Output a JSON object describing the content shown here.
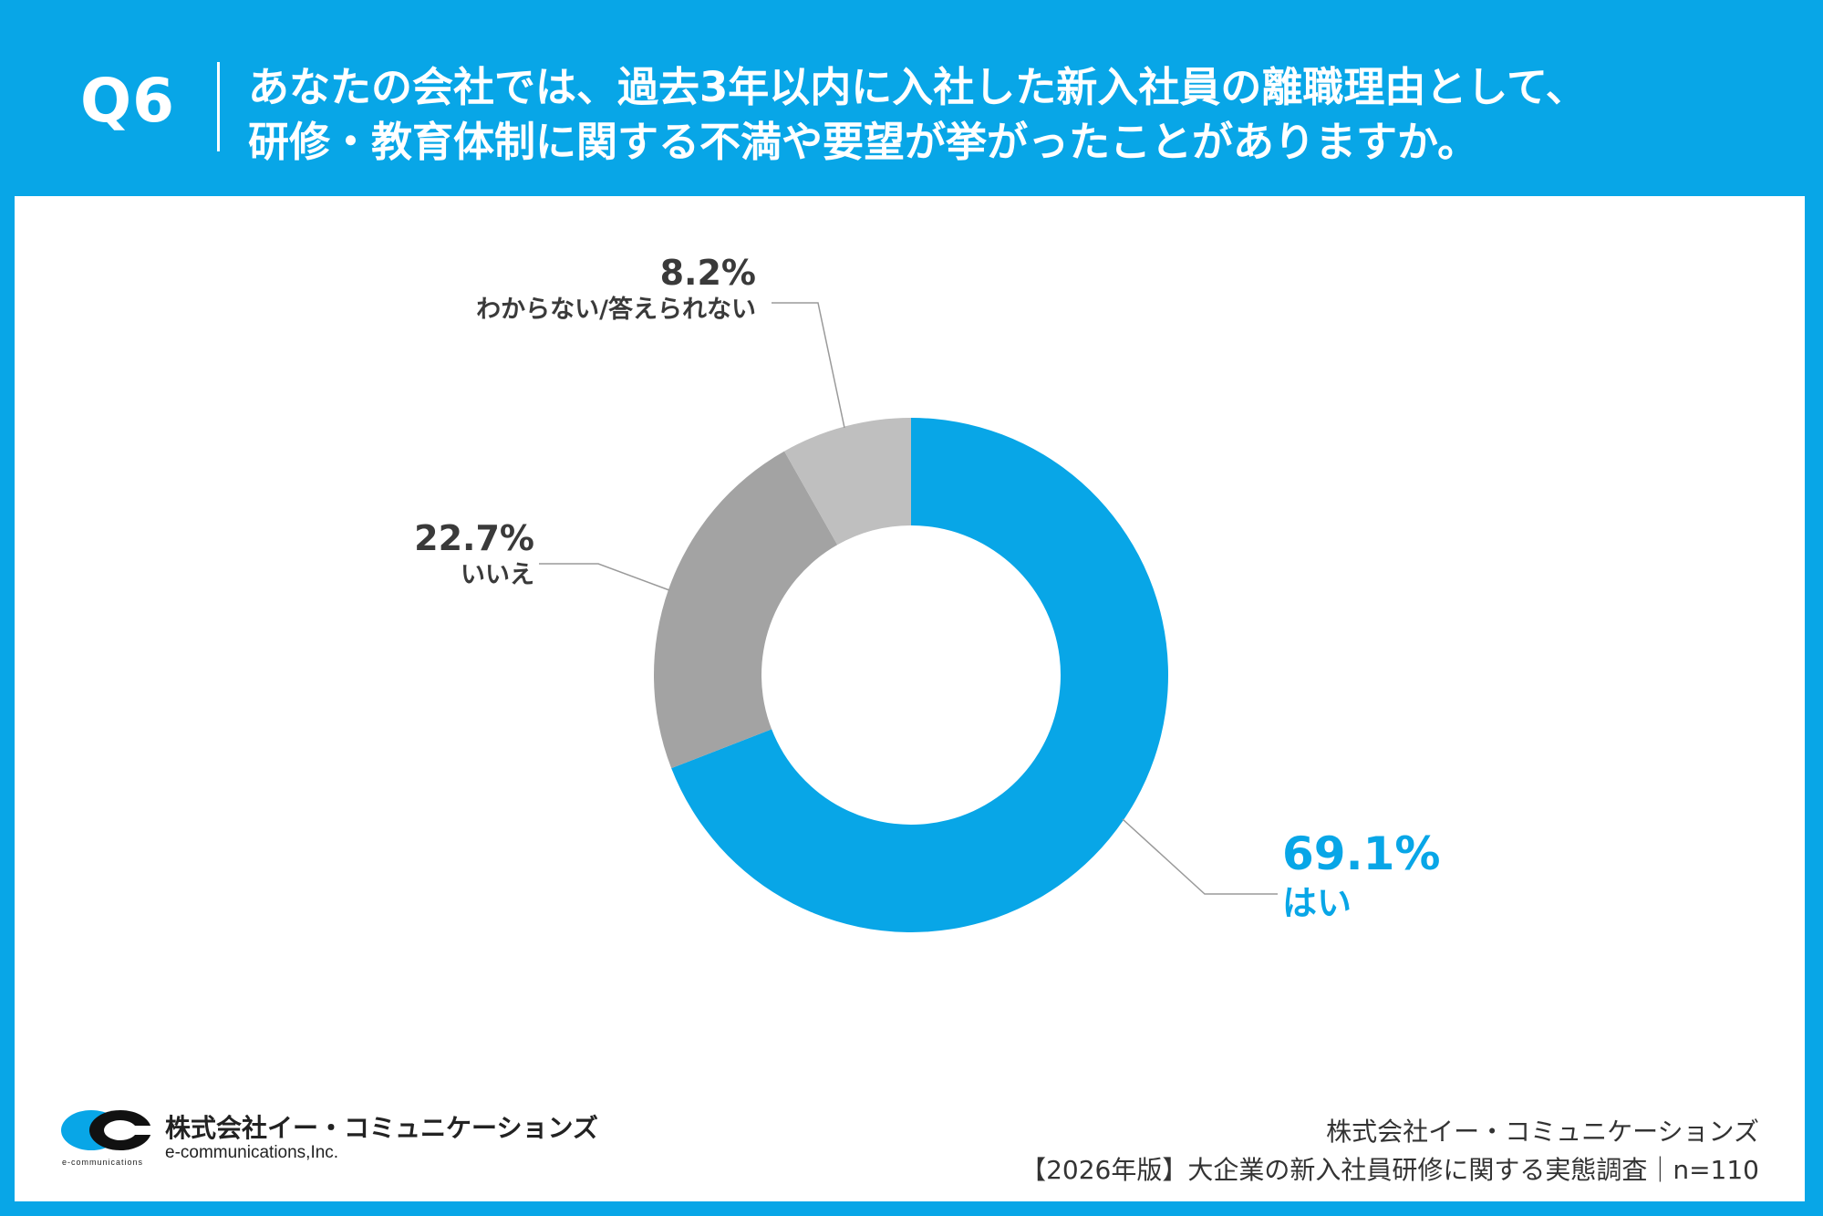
{
  "header": {
    "question_number": "Q6",
    "question_line1": "あなたの会社では、過去3年以内に入社した新入社員の離職理由として、",
    "question_line2": "研修・教育体制に関する不満や要望が挙がったことがありますか。"
  },
  "chart_data": {
    "type": "pie",
    "title": "",
    "categories": [
      "はい",
      "いいえ",
      "わからない/答えられない"
    ],
    "values": [
      69.1,
      22.7,
      8.2
    ],
    "value_labels": [
      "69.1%",
      "22.7%",
      "8.2%"
    ],
    "colors": [
      "#08a6e7",
      "#a3a3a3",
      "#bfbfbf"
    ],
    "label_colors": [
      "#08a6e7",
      "#3a3a3a",
      "#3a3a3a"
    ],
    "donut": true,
    "legend": "none"
  },
  "footer": {
    "logo_name": "株式会社イー・コミュニケーションズ",
    "logo_en": "e-communications,Inc.",
    "logo_small": "e-communications",
    "company": "株式会社イー・コミュニケーションズ",
    "survey": "【2026年版】大企業の新入社員研修に関する実態調査｜n=110"
  }
}
